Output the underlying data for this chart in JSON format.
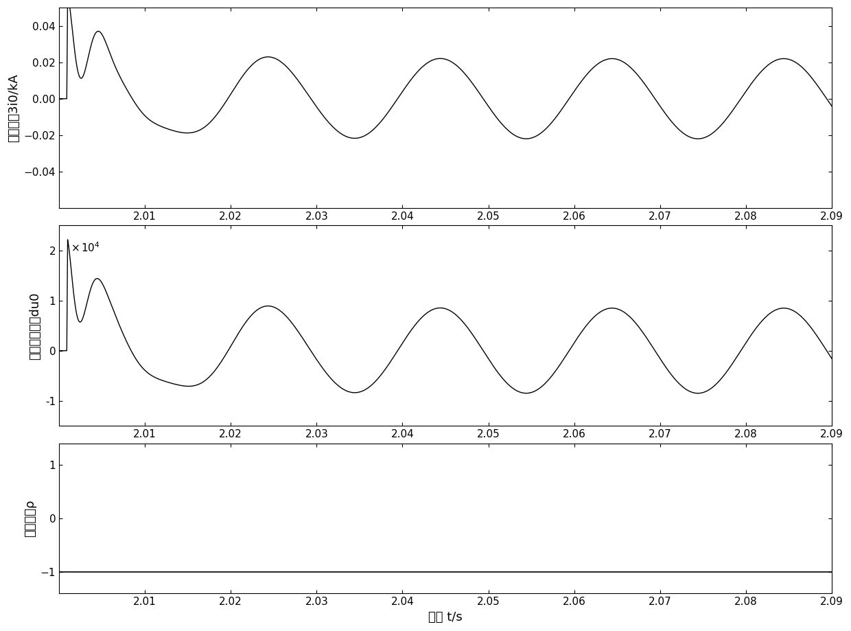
{
  "xlabel": "时间 t/s",
  "ylabel1": "零序电浔3i0/kA",
  "ylabel2": "零序电压导数du0",
  "ylabel3": "相关系数ρ",
  "xlim": [
    2.0,
    2.09
  ],
  "xticks": [
    2.01,
    2.02,
    2.03,
    2.04,
    2.05,
    2.06,
    2.07,
    2.08,
    2.09
  ],
  "ylim1": [
    -0.06,
    0.05
  ],
  "yticks1": [
    -0.04,
    -0.02,
    0,
    0.02,
    0.04
  ],
  "ylim2": [
    -15000.0,
    25000.0
  ],
  "yticks2": [
    -10000.0,
    0,
    10000.0,
    20000.0
  ],
  "ylim3": [
    -1.4,
    1.4
  ],
  "yticks3": [
    -1,
    0,
    1
  ],
  "line_color": "#000000",
  "line_width": 1.0,
  "background_color": "#ffffff",
  "freq": 50,
  "t_start": 2.0,
  "t_end": 2.09,
  "t_fault": 2.001,
  "sample_rate": 10000
}
